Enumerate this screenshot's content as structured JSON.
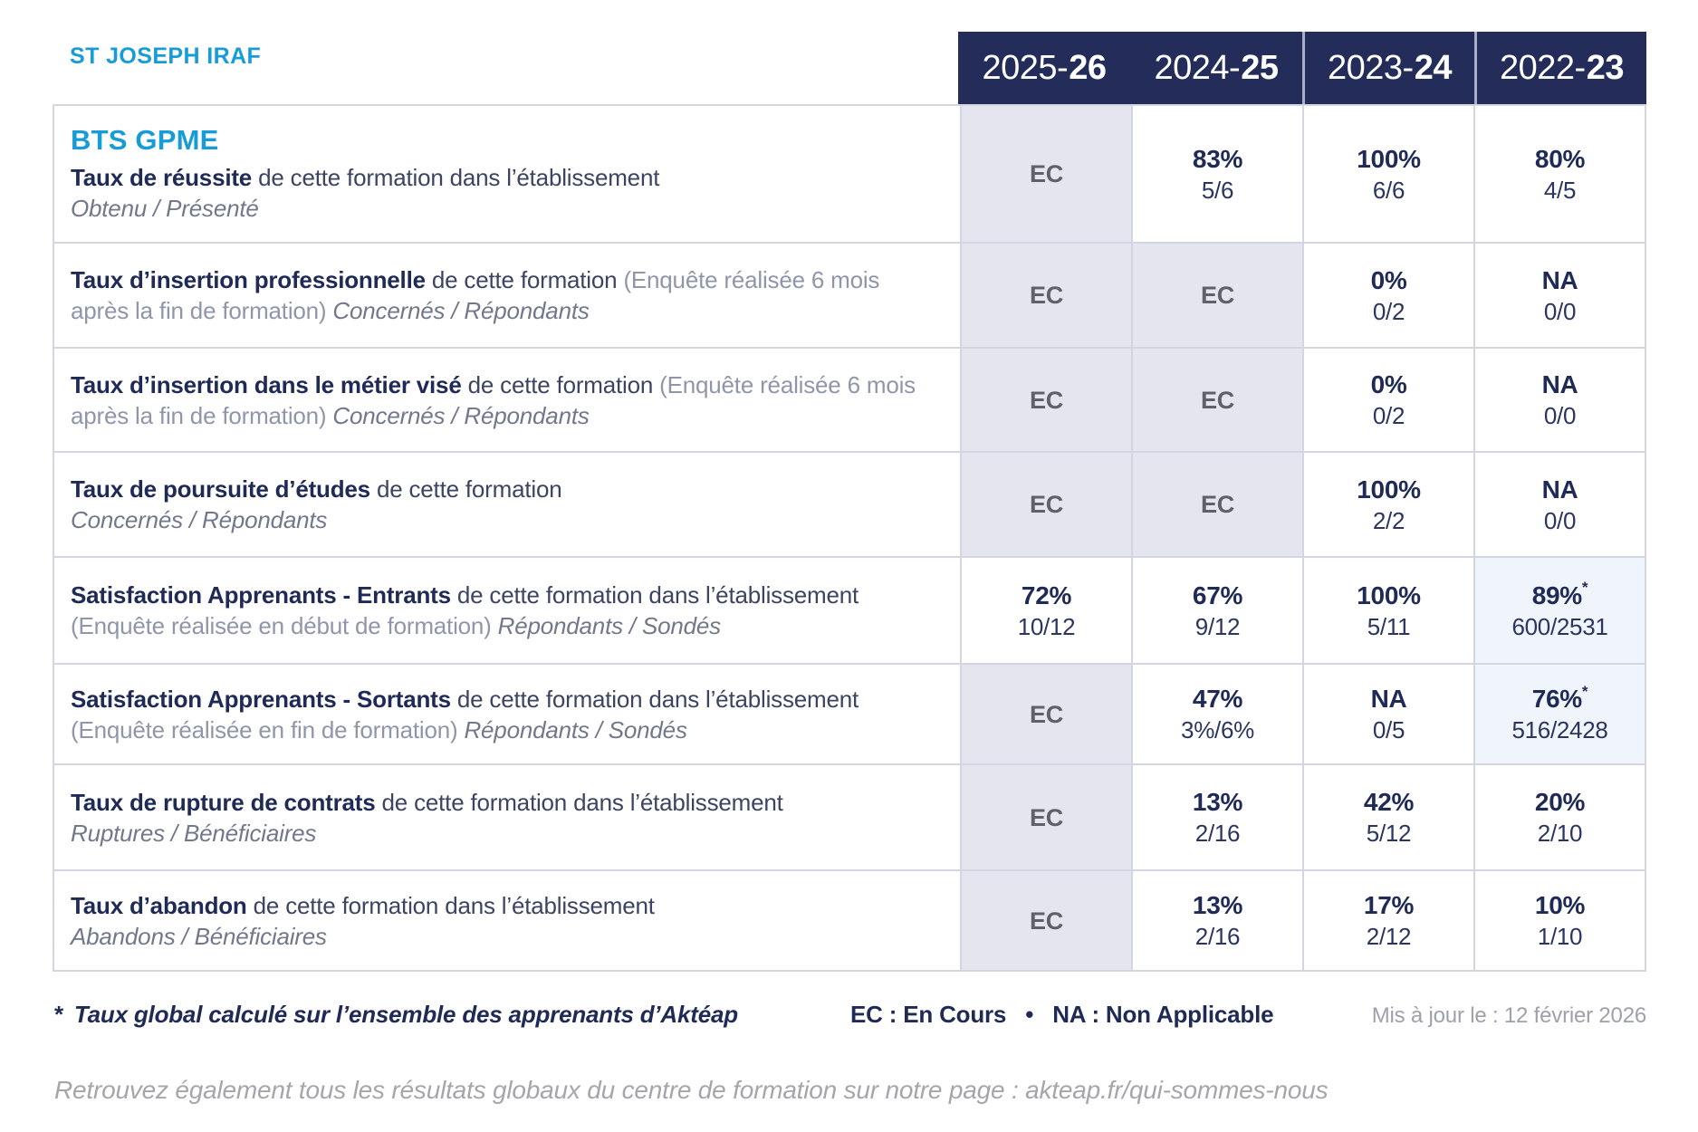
{
  "school": "ST JOSEPH IRAF",
  "program": "BTS GPME",
  "columns": [
    {
      "light": "2025-",
      "bold": "26"
    },
    {
      "light": "2024-",
      "bold": "25"
    },
    {
      "light": "2023-",
      "bold": "24"
    },
    {
      "light": "2022-",
      "bold": "23"
    }
  ],
  "rows": [
    {
      "title": "Taux de réussite",
      "desc": "de cette formation dans l’établissement",
      "paren": "",
      "sub": "Obtenu / Présenté",
      "cells": [
        {
          "pct": "EC",
          "frac": ""
        },
        {
          "pct": "83%",
          "frac": "5/6"
        },
        {
          "pct": "100%",
          "frac": "6/6"
        },
        {
          "pct": "80%",
          "frac": "4/5"
        }
      ]
    },
    {
      "title": "Taux d’insertion professionnelle",
      "desc": "de cette formation",
      "paren": "(Enquête réalisée 6 mois après la fin de formation)",
      "sub": "Concernés / Répondants",
      "cells": [
        {
          "pct": "EC",
          "frac": ""
        },
        {
          "pct": "EC",
          "frac": ""
        },
        {
          "pct": "0%",
          "frac": "0/2"
        },
        {
          "pct": "NA",
          "frac": "0/0"
        }
      ]
    },
    {
      "title": "Taux d’insertion dans le métier visé",
      "desc": "de cette formation",
      "paren": "(Enquête réalisée 6 mois après la fin de formation)",
      "sub": "Concernés / Répondants",
      "cells": [
        {
          "pct": "EC",
          "frac": ""
        },
        {
          "pct": "EC",
          "frac": ""
        },
        {
          "pct": "0%",
          "frac": "0/2"
        },
        {
          "pct": "NA",
          "frac": "0/0"
        }
      ]
    },
    {
      "title": "Taux de poursuite d’études",
      "desc": "de cette formation",
      "paren": "",
      "sub": "Concernés / Répondants",
      "cells": [
        {
          "pct": "EC",
          "frac": ""
        },
        {
          "pct": "EC",
          "frac": ""
        },
        {
          "pct": "100%",
          "frac": "2/2"
        },
        {
          "pct": "NA",
          "frac": "0/0"
        }
      ]
    },
    {
      "title": "Satisfaction Apprenants - Entrants",
      "desc": "de cette formation dans l’établissement",
      "paren": "(Enquête réalisée en début de formation)",
      "sub": "Répondants / Sondés",
      "cells": [
        {
          "pct": "72%",
          "frac": "10/12"
        },
        {
          "pct": "67%",
          "frac": "9/12"
        },
        {
          "pct": "100%",
          "frac": "5/11"
        },
        {
          "pct": "89%",
          "star": "*",
          "frac": "600/2531"
        }
      ]
    },
    {
      "title": "Satisfaction Apprenants - Sortants",
      "desc": "de cette formation dans l’établissement",
      "paren": "(Enquête réalisée en fin de formation)",
      "sub": "Répondants / Sondés",
      "cells": [
        {
          "pct": "EC",
          "frac": ""
        },
        {
          "pct": "47%",
          "frac": "3%/6%"
        },
        {
          "pct": "NA",
          "frac": "0/5"
        },
        {
          "pct": "76%",
          "star": "*",
          "frac": "516/2428"
        }
      ]
    },
    {
      "title": "Taux de rupture de contrats",
      "desc": "de cette formation dans l’établissement",
      "paren": "",
      "sub": "Ruptures / Bénéficiaires",
      "cells": [
        {
          "pct": "EC",
          "frac": ""
        },
        {
          "pct": "13%",
          "frac": "2/16"
        },
        {
          "pct": "42%",
          "frac": "5/12"
        },
        {
          "pct": "20%",
          "frac": "2/10"
        }
      ]
    },
    {
      "title": "Taux d’abandon",
      "desc": "de cette formation dans l’établissement",
      "paren": "",
      "sub": "Abandons / Bénéficiaires",
      "cells": [
        {
          "pct": "EC",
          "frac": ""
        },
        {
          "pct": "13%",
          "frac": "2/16"
        },
        {
          "pct": "17%",
          "frac": "2/12"
        },
        {
          "pct": "10%",
          "frac": "1/10"
        }
      ]
    }
  ],
  "footer": {
    "note_star": "*",
    "note_text": "Taux global calculé sur l’ensemble des apprenants d’Aktéap",
    "legend": "EC : En Cours   •   NA : Non Applicable",
    "updated": "Mis à jour le : 12 février 2026",
    "bottom": "Retrouvez également tous les résultats globaux du centre de formation sur notre page : akteap.fr/qui-sommes-nous"
  },
  "colors": {
    "brand_blue": "#189CD8",
    "navy": "#1F2A56",
    "header_bg": "#242D59",
    "ec_cell_bg": "#E4E5EE",
    "highlight_cell_bg": "#EFF5FA",
    "grid_line": "#D3D5E1"
  }
}
